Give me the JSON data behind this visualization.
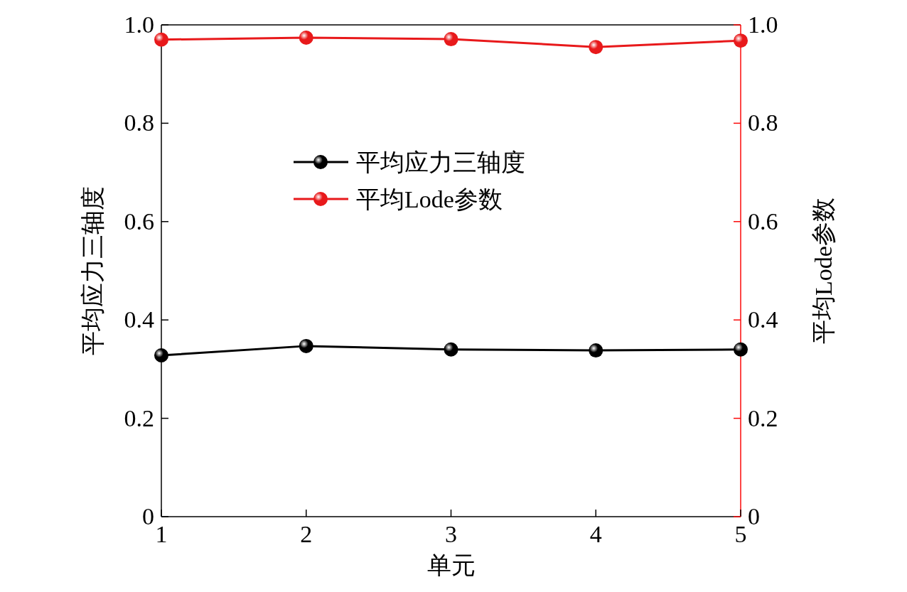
{
  "chart_data": {
    "type": "line",
    "xlabel": "单元",
    "ylabel": "平均应力三轴度",
    "y2label": "平均Lode参数",
    "x": [
      1,
      2,
      3,
      4,
      5
    ],
    "xlim": [
      1,
      5
    ],
    "xticks": [
      1,
      2,
      3,
      4,
      5
    ],
    "ylim": [
      0,
      1
    ],
    "yticks": [
      0,
      0.2,
      0.4,
      0.6,
      0.8,
      {
        "value": 1,
        "label": "1.0"
      }
    ],
    "y2lim": [
      0,
      1
    ],
    "y2ticks": [
      0,
      0.2,
      0.4,
      0.6,
      0.8,
      {
        "value": 1,
        "label": "1.0"
      }
    ],
    "marker": "circle",
    "line_style": "solid",
    "legend": "top",
    "series": [
      {
        "name": "平均应力三轴度",
        "color": "#000000",
        "values": [
          0.328,
          0.347,
          0.34,
          0.338,
          0.34
        ]
      },
      {
        "name": "平均Lode参数",
        "color": "#e8191b",
        "axis": "y2",
        "values": [
          0.97,
          0.974,
          0.971,
          0.955,
          0.968
        ]
      }
    ]
  }
}
